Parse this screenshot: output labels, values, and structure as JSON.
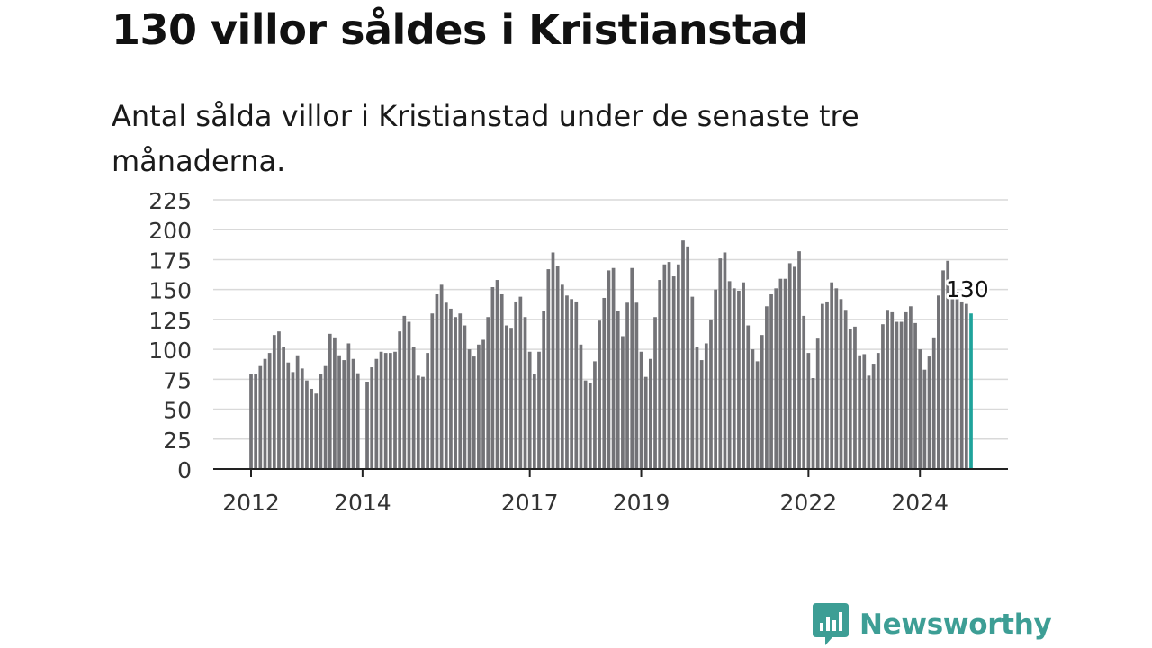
{
  "header": {
    "title": "130 villor såldes i Kristianstad",
    "subtitle": "Antal sålda villor i Kristianstad under de senaste tre månaderna."
  },
  "brand": {
    "name": "Newsworthy",
    "icon": "newsworthy-logo-icon",
    "color": "#3d9e95"
  },
  "chart_data": {
    "type": "bar",
    "start": "2012-01",
    "title": "",
    "xlabel": "",
    "ylabel": "",
    "ylim": [
      0,
      225
    ],
    "yticks": [
      0,
      25,
      50,
      75,
      100,
      125,
      150,
      175,
      200,
      225
    ],
    "xticks": [
      {
        "label": "2012",
        "date": "2012-01"
      },
      {
        "label": "2014",
        "date": "2014-01"
      },
      {
        "label": "2017",
        "date": "2017-01"
      },
      {
        "label": "2019",
        "date": "2019-01"
      },
      {
        "label": "2022",
        "date": "2022-01"
      },
      {
        "label": "2024",
        "date": "2024-01"
      }
    ],
    "grid": true,
    "bar_color": "#737377",
    "highlight_color": "#1fa39b",
    "highlight_label": "130",
    "values": [
      79,
      79,
      86,
      92,
      97,
      112,
      115,
      102,
      89,
      81,
      95,
      84,
      74,
      67,
      63,
      79,
      86,
      113,
      110,
      95,
      91,
      105,
      92,
      80,
      null,
      73,
      85,
      92,
      98,
      97,
      97,
      98,
      115,
      128,
      123,
      102,
      78,
      77,
      97,
      130,
      146,
      154,
      139,
      134,
      127,
      130,
      120,
      100,
      94,
      104,
      108,
      127,
      152,
      158,
      146,
      120,
      118,
      140,
      144,
      127,
      98,
      79,
      98,
      132,
      167,
      181,
      170,
      154,
      145,
      142,
      140,
      104,
      74,
      72,
      90,
      124,
      143,
      166,
      168,
      132,
      111,
      139,
      168,
      139,
      98,
      77,
      92,
      127,
      158,
      171,
      173,
      161,
      171,
      191,
      186,
      144,
      102,
      91,
      105,
      125,
      150,
      176,
      181,
      157,
      151,
      149,
      156,
      120,
      100,
      90,
      112,
      136,
      146,
      151,
      159,
      159,
      172,
      169,
      182,
      128,
      97,
      76,
      109,
      138,
      140,
      156,
      151,
      142,
      133,
      117,
      119,
      95,
      96,
      78,
      88,
      97,
      121,
      133,
      131,
      123,
      123,
      131,
      136,
      122,
      100,
      83,
      94,
      110,
      145,
      166,
      174,
      153,
      148,
      140,
      138,
      130
    ]
  }
}
